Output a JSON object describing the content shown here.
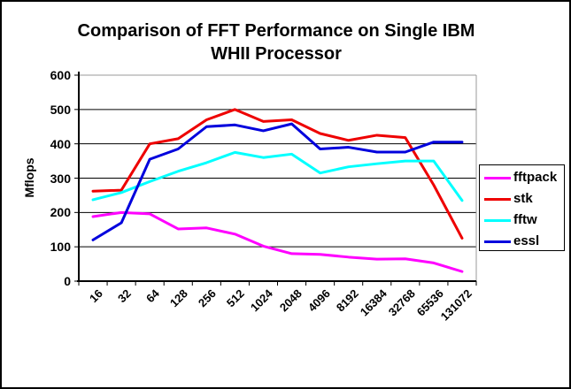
{
  "chart_data": {
    "type": "line",
    "title": "Comparison of FFT Performance on Single IBM WHII Processor",
    "title_lines": [
      "Comparison of FFT Performance on Single IBM",
      "WHII Processor"
    ],
    "ylabel": "Mflops",
    "xlabel": "",
    "ylim": [
      0,
      600
    ],
    "ytick_interval": 100,
    "yticks": [
      0,
      100,
      200,
      300,
      400,
      500,
      600
    ],
    "grid": true,
    "legend_position": "right",
    "categories": [
      "16",
      "32",
      "64",
      "128",
      "256",
      "512",
      "1024",
      "2048",
      "4096",
      "8192",
      "16384",
      "32768",
      "65536",
      "131072"
    ],
    "series": [
      {
        "name": "fftpack",
        "color": "#FF00FF",
        "values": [
          188,
          200,
          196,
          152,
          155,
          137,
          102,
          80,
          78,
          70,
          64,
          65,
          53,
          28
        ]
      },
      {
        "name": "stk",
        "color": "#EE0000",
        "values": [
          262,
          265,
          400,
          415,
          470,
          500,
          465,
          470,
          430,
          410,
          425,
          418,
          280,
          125
        ]
      },
      {
        "name": "fftw",
        "color": "#00FFFF",
        "values": [
          237,
          258,
          290,
          320,
          345,
          375,
          360,
          370,
          315,
          333,
          342,
          350,
          350,
          235
        ]
      },
      {
        "name": "essl",
        "color": "#0000DD",
        "values": [
          120,
          170,
          355,
          385,
          450,
          455,
          438,
          458,
          385,
          390,
          376,
          376,
          405,
          405
        ]
      }
    ],
    "colors": {
      "grid": "#000000",
      "plot_border": "#999999",
      "axis": "#000000",
      "background": "#FFFFFF",
      "outer_border": "#000000"
    }
  }
}
